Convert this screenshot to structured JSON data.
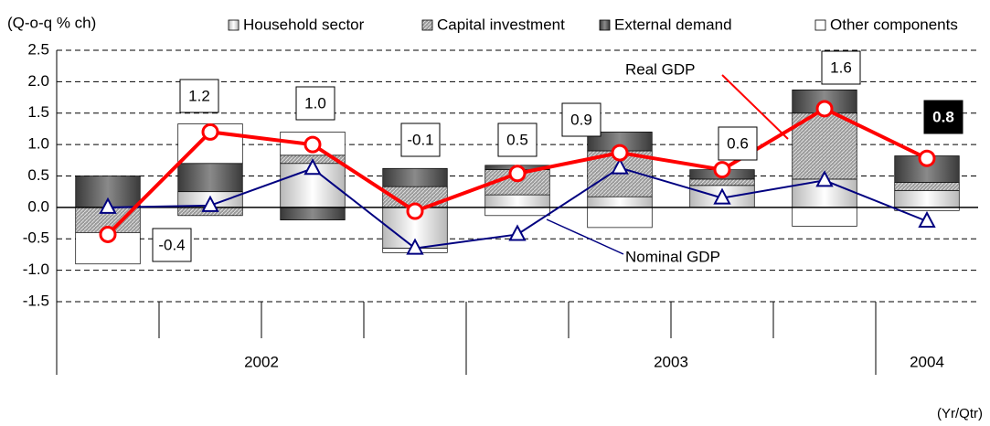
{
  "chart_data": {
    "type": "stacked-bar-line",
    "y_label": "(Q-o-q % ch)",
    "x_label": "(Yr/Qtr)",
    "categories": [
      null,
      null,
      null,
      null,
      null,
      null,
      null,
      null,
      null
    ],
    "category_groups": [
      {
        "label": "2002",
        "size": 4
      },
      {
        "label": "2003",
        "size": 4
      },
      {
        "label": "2004",
        "size": 1
      }
    ],
    "ylim": [
      -1.5,
      2.5
    ],
    "yticks": [
      -1.5,
      -1.0,
      -0.5,
      0.0,
      0.5,
      1.0,
      1.5,
      2.0,
      2.5
    ],
    "grid": true,
    "series": [
      {
        "name": "Household sector",
        "color": "#b8b8b8",
        "values": [
          0,
          0.25,
          0.7,
          -0.65,
          0.2,
          0.17,
          0.35,
          0.45,
          0.27
        ]
      },
      {
        "name": "Capital investment",
        "color": "#9a9a9a",
        "values": [
          -0.4,
          -0.13,
          0.13,
          0.33,
          0.4,
          0.73,
          0.1,
          1.05,
          0.13
        ]
      },
      {
        "name": "External demand",
        "color": "#3a3a3a",
        "values": [
          0.5,
          0.45,
          -0.2,
          0.29,
          0.07,
          0.3,
          0.15,
          0.37,
          0.42
        ]
      },
      {
        "name": "Other components",
        "color": "#ffffff",
        "values": [
          -0.5,
          0.63,
          0.37,
          -0.07,
          -0.13,
          -0.32,
          0,
          -0.3,
          -0.05
        ]
      }
    ],
    "lines": [
      {
        "name": "Real GDP",
        "color": "#ff0000",
        "marker": "circle",
        "values": [
          -0.43,
          1.2,
          1.0,
          -0.06,
          0.54,
          0.87,
          0.6,
          1.57,
          0.78
        ],
        "value_labels": [
          "-0.4",
          "1.2",
          "1.0",
          "-0.1",
          "0.5",
          "0.9",
          "0.6",
          "1.6",
          "0.8"
        ]
      },
      {
        "name": "Nominal GDP",
        "color": "#000080",
        "marker": "triangle",
        "values": [
          0.0,
          0.03,
          0.62,
          -0.65,
          -0.43,
          0.63,
          0.15,
          0.43,
          -0.22
        ]
      }
    ]
  }
}
